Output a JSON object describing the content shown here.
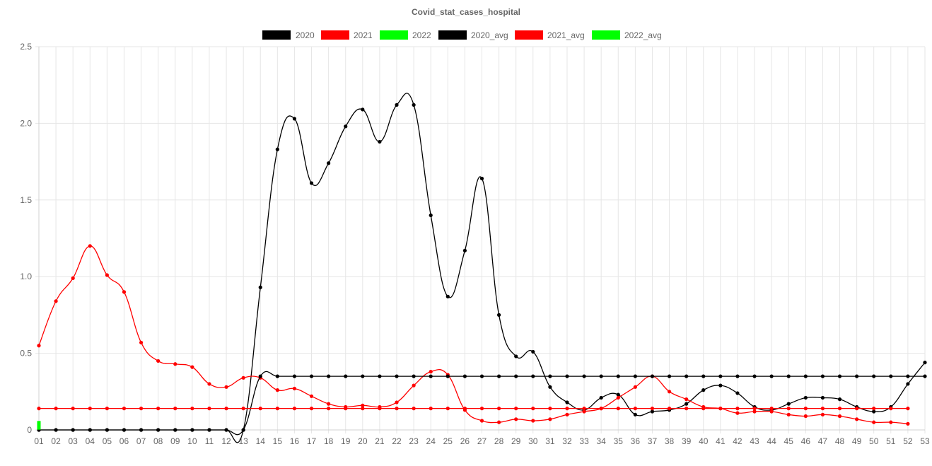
{
  "chart_data": {
    "type": "line",
    "title": "Covid_stat_cases_hospital",
    "xlabel": "",
    "ylabel": "",
    "ylim": [
      0,
      2.5
    ],
    "y_ticks": [
      "0",
      "0.5",
      "1.0",
      "1.5",
      "2.0",
      "2.5"
    ],
    "grid": true,
    "legend_position": "top",
    "categories": [
      "01",
      "02",
      "03",
      "04",
      "05",
      "06",
      "07",
      "08",
      "09",
      "10",
      "11",
      "12",
      "13",
      "14",
      "15",
      "16",
      "17",
      "18",
      "19",
      "20",
      "21",
      "22",
      "23",
      "24",
      "25",
      "26",
      "27",
      "28",
      "29",
      "30",
      "31",
      "32",
      "33",
      "34",
      "35",
      "36",
      "37",
      "38",
      "39",
      "40",
      "41",
      "42",
      "43",
      "44",
      "45",
      "46",
      "47",
      "48",
      "49",
      "50",
      "51",
      "52",
      "53"
    ],
    "series": [
      {
        "name": "2020",
        "color": "#000000",
        "values": [
          0,
          0,
          0,
          0,
          0,
          0,
          0,
          0,
          0,
          0,
          0,
          0,
          0,
          0.93,
          1.83,
          2.03,
          1.61,
          1.74,
          1.98,
          2.09,
          1.88,
          2.12,
          2.12,
          1.4,
          0.87,
          1.17,
          1.64,
          0.75,
          0.48,
          0.51,
          0.28,
          0.18,
          0.13,
          0.21,
          0.23,
          0.1,
          0.12,
          0.13,
          0.17,
          0.26,
          0.29,
          0.24,
          0.15,
          0.13,
          0.17,
          0.21,
          0.21,
          0.2,
          0.15,
          0.12,
          0.15,
          0.3,
          0.44
        ]
      },
      {
        "name": "2021",
        "color": "#ff0000",
        "values": [
          0.55,
          0.84,
          0.99,
          1.2,
          1.01,
          0.9,
          0.57,
          0.45,
          0.43,
          0.41,
          0.3,
          0.28,
          0.34,
          0.34,
          0.26,
          0.27,
          0.22,
          0.17,
          0.15,
          0.16,
          0.15,
          0.18,
          0.29,
          0.38,
          0.36,
          0.13,
          0.06,
          0.05,
          0.07,
          0.06,
          0.07,
          0.1,
          0.12,
          0.14,
          0.21,
          0.28,
          0.35,
          0.25,
          0.2,
          0.15,
          0.14,
          0.11,
          0.12,
          0.12,
          0.1,
          0.09,
          0.1,
          0.09,
          0.07,
          0.05,
          0.05,
          0.04,
          null
        ]
      },
      {
        "name": "2022",
        "color": "#00ff00",
        "values": [
          0.04,
          null,
          null,
          null,
          null,
          null,
          null,
          null,
          null,
          null,
          null,
          null,
          null,
          null,
          null,
          null,
          null,
          null,
          null,
          null,
          null,
          null,
          null,
          null,
          null,
          null,
          null,
          null,
          null,
          null,
          null,
          null,
          null,
          null,
          null,
          null,
          null,
          null,
          null,
          null,
          null,
          null,
          null,
          null,
          null,
          null,
          null,
          null,
          null,
          null,
          null,
          null,
          null
        ]
      },
      {
        "name": "2020_avg",
        "color": "#000000",
        "values": [
          0,
          0,
          0,
          0,
          0,
          0,
          0,
          0,
          0,
          0,
          0,
          0,
          0,
          0.35,
          0.35,
          0.35,
          0.35,
          0.35,
          0.35,
          0.35,
          0.35,
          0.35,
          0.35,
          0.35,
          0.35,
          0.35,
          0.35,
          0.35,
          0.35,
          0.35,
          0.35,
          0.35,
          0.35,
          0.35,
          0.35,
          0.35,
          0.35,
          0.35,
          0.35,
          0.35,
          0.35,
          0.35,
          0.35,
          0.35,
          0.35,
          0.35,
          0.35,
          0.35,
          0.35,
          0.35,
          0.35,
          0.35,
          0.35
        ]
      },
      {
        "name": "2021_avg",
        "color": "#ff0000",
        "values": [
          0.14,
          0.14,
          0.14,
          0.14,
          0.14,
          0.14,
          0.14,
          0.14,
          0.14,
          0.14,
          0.14,
          0.14,
          0.14,
          0.14,
          0.14,
          0.14,
          0.14,
          0.14,
          0.14,
          0.14,
          0.14,
          0.14,
          0.14,
          0.14,
          0.14,
          0.14,
          0.14,
          0.14,
          0.14,
          0.14,
          0.14,
          0.14,
          0.14,
          0.14,
          0.14,
          0.14,
          0.14,
          0.14,
          0.14,
          0.14,
          0.14,
          0.14,
          0.14,
          0.14,
          0.14,
          0.14,
          0.14,
          0.14,
          0.14,
          0.14,
          0.14,
          0.14,
          null
        ]
      },
      {
        "name": "2022_avg",
        "color": "#00ff00",
        "values": [
          0.02,
          null,
          null,
          null,
          null,
          null,
          null,
          null,
          null,
          null,
          null,
          null,
          null,
          null,
          null,
          null,
          null,
          null,
          null,
          null,
          null,
          null,
          null,
          null,
          null,
          null,
          null,
          null,
          null,
          null,
          null,
          null,
          null,
          null,
          null,
          null,
          null,
          null,
          null,
          null,
          null,
          null,
          null,
          null,
          null,
          null,
          null,
          null,
          null,
          null,
          null,
          null,
          null
        ]
      }
    ]
  }
}
